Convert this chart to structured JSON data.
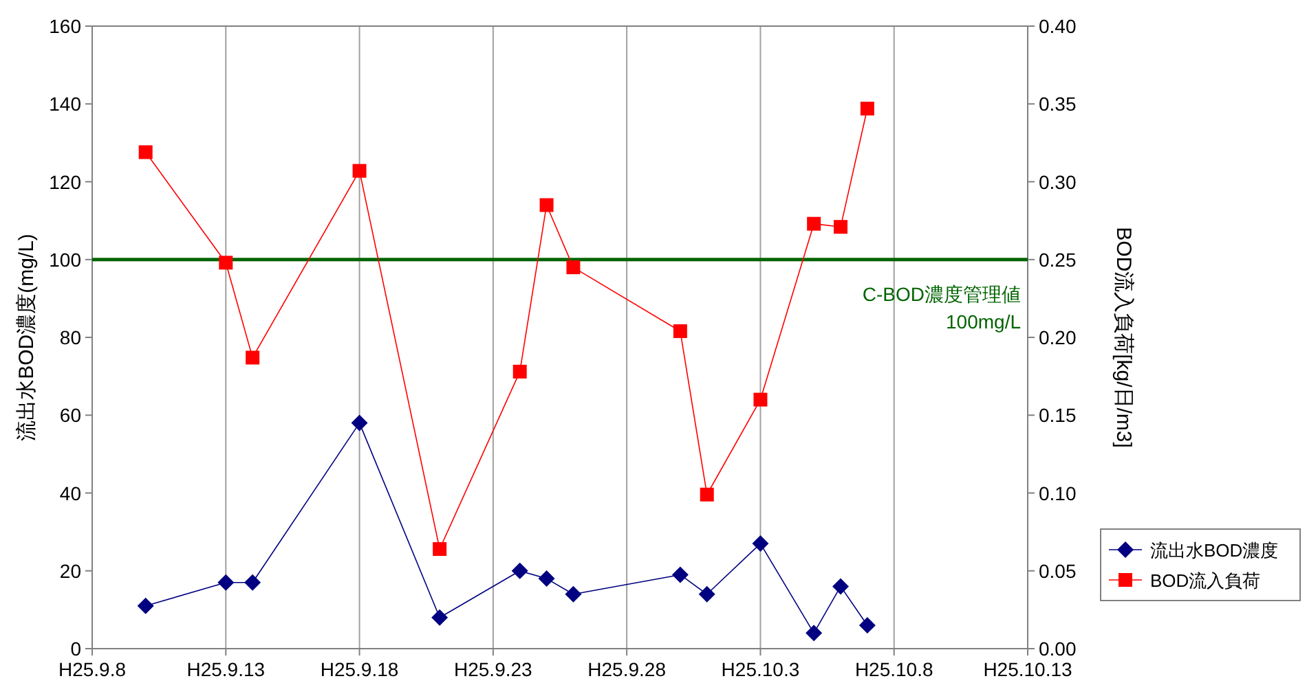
{
  "chart_data": {
    "type": "line",
    "ylabel": "流出水BOD濃度(mg/L)",
    "y2label": "BOD流入負荷[kg/日/m3]",
    "x": [
      "--09-10",
      "--09-13",
      "--09-14",
      "--09-18",
      "--09-21",
      "--09-24",
      "--09-25",
      "--09-26",
      "--09-30",
      "--10-01",
      "--10-03",
      "--10-05",
      "--10-06",
      "--10-07"
    ],
    "xlim": [
      "--09-08",
      "--10-13"
    ],
    "xticks": [
      {
        "value": "--09-08",
        "label": "H25.9.8"
      },
      {
        "value": "--09-13",
        "label": "H25.9.13"
      },
      {
        "value": "--09-18",
        "label": "H25.9.18"
      },
      {
        "value": "--09-23",
        "label": "H25.9.23"
      },
      {
        "value": "--09-28",
        "label": "H25.9.28"
      },
      {
        "value": "--10-03",
        "label": "H25.10.3"
      },
      {
        "value": "--10-08",
        "label": "H25.10.8"
      },
      {
        "value": "--10-13",
        "label": "H25.10.13"
      }
    ],
    "ylim": [
      0,
      160
    ],
    "yticks": [
      0,
      20,
      40,
      60,
      80,
      100,
      120,
      140,
      160
    ],
    "y2lim": [
      0,
      0.4
    ],
    "y2ticks": [
      {
        "value": 0,
        "label": "0.00"
      },
      {
        "value": 0.05,
        "label": "0.05"
      },
      {
        "value": 0.1,
        "label": "0.10"
      },
      {
        "value": 0.15,
        "label": "0.15"
      },
      {
        "value": 0.2,
        "label": "0.20"
      },
      {
        "value": 0.25,
        "label": "0.25"
      },
      {
        "value": 0.3,
        "label": "0.30"
      },
      {
        "value": 0.35,
        "label": "0.35"
      },
      {
        "value": 0.4,
        "label": "0.40"
      }
    ],
    "series": [
      {
        "name": "流出水BOD濃度",
        "color": "#000080",
        "marker": "diamond",
        "values": [
          11,
          17,
          17,
          58,
          8,
          20,
          18,
          14,
          19,
          14,
          27,
          4,
          16,
          6
        ]
      },
      {
        "name": "BOD流入負荷",
        "color": "#ff0000",
        "marker": "square",
        "axis": "y2",
        "values": [
          0.319,
          0.248,
          0.187,
          0.307,
          0.064,
          0.178,
          0.285,
          0.245,
          0.204,
          0.099,
          0.16,
          0.273,
          0.271,
          0.347
        ]
      }
    ],
    "ref_lines": [
      {
        "axis": "y",
        "value": 100,
        "label": "C-BOD濃度管理値\n100mg/L",
        "color": "#006400"
      }
    ],
    "grid": "x",
    "legend": "bottom right"
  }
}
